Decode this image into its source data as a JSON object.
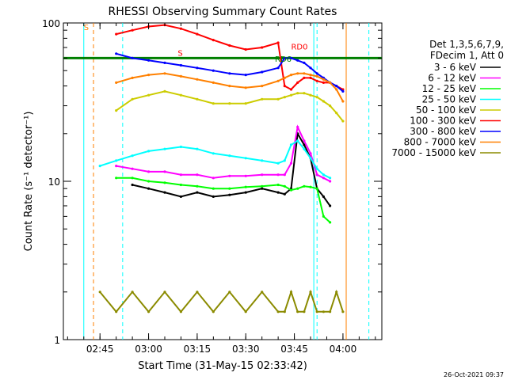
{
  "chart_data": {
    "type": "line",
    "title": "RHESSI Observing Summary Count Rates",
    "xlabel": "Start Time (31-May-15 02:33:42)",
    "ylabel": "Count Rate (s⁻¹ detector⁻¹)",
    "yscale": "log",
    "ylim": [
      1,
      100
    ],
    "xlim": [
      "02:33:42",
      "04:12:00"
    ],
    "x_ticks": [
      "02:45",
      "03:00",
      "03:15",
      "03:30",
      "03:45",
      "04:00"
    ],
    "y_ticks": [
      "1",
      "10",
      "100"
    ],
    "legend_header": [
      "Det 1,3,5,6,7,9,",
      "FDecim 1, Att 0"
    ],
    "legend_position": "right",
    "x": [
      "02:40",
      "02:45",
      "02:50",
      "02:55",
      "03:00",
      "03:05",
      "03:10",
      "03:15",
      "03:20",
      "03:25",
      "03:30",
      "03:35",
      "03:40",
      "03:42",
      "03:44",
      "03:46",
      "03:48",
      "03:50",
      "03:52",
      "03:54",
      "03:56",
      "03:58",
      "04:00",
      "04:02"
    ],
    "series": [
      {
        "name": "3 - 6 keV",
        "color": "#000000",
        "values": [
          null,
          null,
          null,
          9.5,
          9.0,
          8.5,
          8.0,
          8.5,
          8.0,
          8.2,
          8.5,
          9.0,
          8.5,
          8.3,
          9.0,
          20,
          17,
          14,
          9.0,
          8.0,
          7.0,
          null,
          null,
          null
        ]
      },
      {
        "name": "6 - 12 keV",
        "color": "#ff00ff",
        "values": [
          null,
          null,
          12.5,
          12.0,
          11.5,
          11.5,
          11.0,
          11.0,
          10.5,
          10.8,
          10.8,
          11.0,
          11.0,
          11.0,
          13,
          22,
          18,
          15,
          11,
          10.5,
          10.0,
          null,
          null,
          null
        ]
      },
      {
        "name": "12 - 25 keV",
        "color": "#00ff00",
        "values": [
          null,
          null,
          10.5,
          10.5,
          10.0,
          9.8,
          9.5,
          9.3,
          9.0,
          9.0,
          9.2,
          9.3,
          9.5,
          9.3,
          8.8,
          9.0,
          9.3,
          9.2,
          9.0,
          6.0,
          5.5,
          null,
          null,
          null
        ]
      },
      {
        "name": "25 - 50 keV",
        "color": "#00ffff",
        "values": [
          null,
          12.5,
          13.5,
          14.5,
          15.5,
          16.0,
          16.5,
          16.0,
          15.0,
          14.5,
          14.0,
          13.5,
          13.0,
          13.5,
          17,
          18,
          16,
          14,
          12,
          11,
          10.5,
          null,
          null,
          null
        ]
      },
      {
        "name": "50 - 100 keV",
        "color": "#cccc00",
        "values": [
          null,
          null,
          28,
          33,
          35,
          37,
          35,
          33,
          31,
          31,
          31,
          33,
          33,
          34,
          35,
          36,
          36,
          35,
          34,
          32,
          30,
          27,
          24,
          null
        ]
      },
      {
        "name": "100 - 300 keV",
        "color": "#ff0000",
        "values": [
          null,
          null,
          85,
          90,
          95,
          97,
          92,
          85,
          78,
          72,
          68,
          70,
          75,
          40,
          38,
          42,
          45,
          45,
          43,
          42,
          42,
          40,
          38,
          null
        ]
      },
      {
        "name": "300 - 800 keV",
        "color": "#0000ff",
        "values": [
          null,
          null,
          64,
          60,
          58,
          56,
          54,
          52,
          50,
          48,
          47,
          49,
          52,
          60,
          60,
          58,
          56,
          52,
          48,
          45,
          42,
          40,
          37,
          null
        ]
      },
      {
        "name": "800 - 7000 keV",
        "color": "#ff8000",
        "values": [
          null,
          null,
          42,
          45,
          47,
          48,
          46,
          44,
          42,
          40,
          39,
          40,
          43,
          45,
          47,
          48,
          48,
          47,
          46,
          44,
          42,
          38,
          32,
          null
        ]
      },
      {
        "name": "7000 - 15000 keV",
        "color": "#8b8b00",
        "values": [
          null,
          2.0,
          1.5,
          2.0,
          1.5,
          2.0,
          1.5,
          2.0,
          1.5,
          2.0,
          1.5,
          2.0,
          1.5,
          1.5,
          2.0,
          1.5,
          1.5,
          2.0,
          1.5,
          1.5,
          1.5,
          2.0,
          1.5,
          null
        ]
      }
    ],
    "annotations": [
      {
        "text": "S",
        "x": "02:40",
        "y": 90,
        "color": "#ff8000"
      },
      {
        "text": "S",
        "x": "03:09",
        "y": 62,
        "color": "#ff0000"
      },
      {
        "text": "RD0",
        "x": "03:44",
        "y": 68,
        "color": "#ff0000"
      },
      {
        "text": "RD6",
        "x": "03:39",
        "y": 57,
        "color": "#008000"
      }
    ],
    "footer_timestamp": "26-Oct-2021 09:37"
  }
}
